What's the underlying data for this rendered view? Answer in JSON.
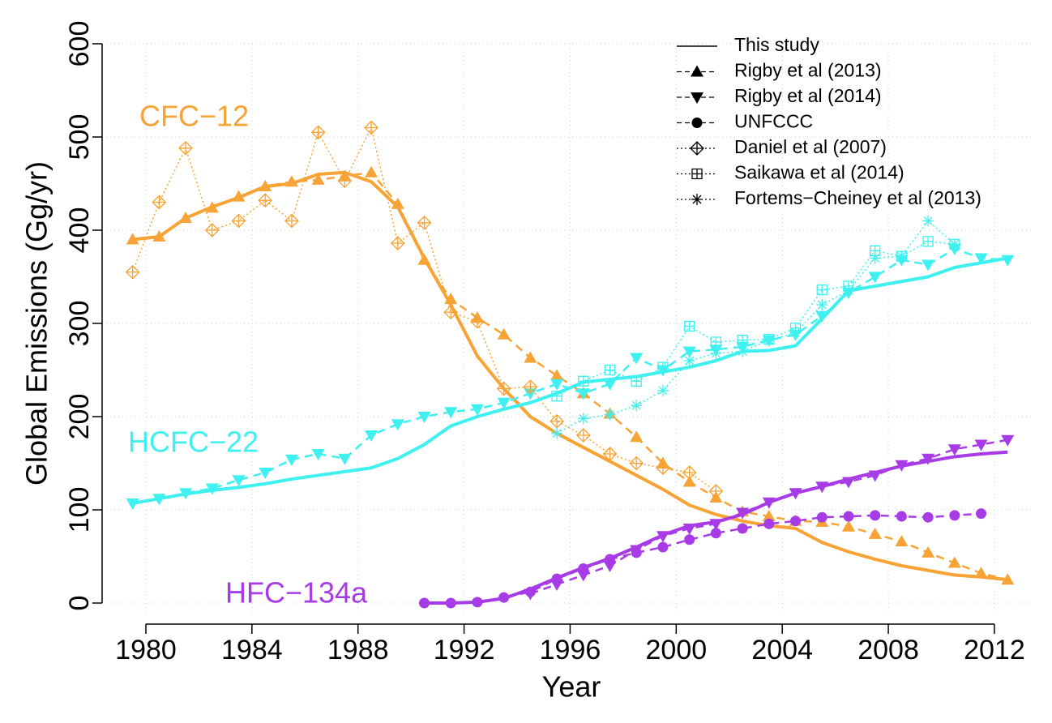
{
  "chart_data": {
    "type": "line",
    "xlabel": "Year",
    "ylabel": "Global Emissions (Gg/yr)",
    "xlim": [
      1978.35,
      2013.5
    ],
    "ylim": [
      0,
      600
    ],
    "xticks": [
      1980,
      1984,
      1988,
      1992,
      1996,
      2000,
      2004,
      2008,
      2012
    ],
    "yticks": [
      0,
      100,
      200,
      300,
      400,
      500,
      600
    ],
    "grid": true,
    "legend": "top-right",
    "series": [
      {
        "name": "This study",
        "label": "CFC−12",
        "color": "#f7a335",
        "line": "solid",
        "marker": "none",
        "x": [
          1979.5,
          1980.5,
          1981.5,
          1982.5,
          1983.5,
          1984.5,
          1985.5,
          1986.5,
          1987.5,
          1988.5,
          1989.5,
          1990.5,
          1991.5,
          1992.5,
          1993.5,
          1994.5,
          1995.5,
          1996.5,
          1997.5,
          1998.5,
          1999.5,
          2000.5,
          2001.5,
          2002.5,
          2003.5,
          2004.5,
          2005.5,
          2006.5,
          2007.5,
          2008.5,
          2009.5,
          2010.5,
          2011.5,
          2012.5
        ],
        "values": [
          390,
          393,
          413,
          425,
          435,
          447,
          450,
          460,
          462,
          452,
          425,
          370,
          320,
          265,
          230,
          200,
          182,
          167,
          152,
          137,
          122,
          105,
          95,
          88,
          83,
          80,
          65,
          55,
          47,
          40,
          35,
          30,
          28,
          25
        ]
      },
      {
        "name": "Rigby et al (2013)",
        "color": "#f7a335",
        "line": "dashed",
        "marker": "triangle-up",
        "x": [
          1979.5,
          1980.5,
          1981.5,
          1982.5,
          1983.5,
          1984.5,
          1985.5,
          1986.5,
          1987.5,
          1988.5,
          1989.5,
          1990.5,
          1991.5,
          1992.5,
          1993.5,
          1994.5,
          1995.5,
          1996.5,
          1997.5,
          1998.5,
          1999.5,
          2000.5,
          2001.5,
          2002.5,
          2003.5,
          2004.5,
          2005.5,
          2006.5,
          2007.5,
          2008.5,
          2009.5,
          2010.5,
          2011.5,
          2012.5
        ],
        "values": [
          390,
          393,
          413,
          424,
          436,
          447,
          452,
          454,
          458,
          462,
          428,
          368,
          326,
          306,
          288,
          263,
          244,
          225,
          203,
          178,
          150,
          130,
          113,
          98,
          93,
          88,
          87,
          82,
          74,
          66,
          54,
          43,
          32,
          25
        ]
      },
      {
        "name": "Rigby et al (2014)",
        "color": "#3ff0f0",
        "line": "dashed",
        "marker": "triangle-down",
        "x": [
          1979.5,
          1980.5,
          1981.5,
          1982.5,
          1983.5,
          1984.5,
          1985.5,
          1986.5,
          1987.5,
          1988.5,
          1989.5,
          1990.5,
          1991.5,
          1992.5,
          1993.5,
          1994.5,
          1995.5,
          1996.5,
          1997.5,
          1998.5,
          1999.5,
          2000.5,
          2001.5,
          2002.5,
          2003.5,
          2004.5,
          2005.5,
          2006.5,
          2007.5,
          2008.5,
          2009.5,
          2010.5,
          2011.5,
          2012.5
        ],
        "values": [
          107,
          112,
          118,
          123,
          132,
          140,
          154,
          160,
          155,
          180,
          192,
          200,
          205,
          208,
          215,
          225,
          235,
          225,
          235,
          263,
          250,
          270,
          272,
          275,
          282,
          288,
          308,
          333,
          350,
          368,
          363,
          380,
          370,
          368
        ]
      },
      {
        "name": "UNFCCC",
        "color": "#a73ce6",
        "line": "dashed",
        "marker": "circle",
        "x": [
          1990.5,
          1991.5,
          1992.5,
          1993.5,
          1994.5,
          1995.5,
          1996.5,
          1997.5,
          1998.5,
          1999.5,
          2000.5,
          2001.5,
          2002.5,
          2003.5,
          2004.5,
          2005.5,
          2006.5,
          2007.5,
          2008.5,
          2009.5,
          2010.5,
          2011.5
        ],
        "values": [
          0,
          0,
          1,
          6,
          12,
          26,
          37,
          47,
          54,
          60,
          68,
          75,
          80,
          85,
          88,
          92,
          93,
          94,
          93,
          92,
          94,
          96
        ]
      },
      {
        "name": "Daniel et al (2007)",
        "color": "#f7a335",
        "line": "dotted",
        "marker": "diamond-plus",
        "x": [
          1979.5,
          1980.5,
          1981.5,
          1982.5,
          1983.5,
          1984.5,
          1985.5,
          1986.5,
          1987.5,
          1988.5,
          1989.5,
          1990.5,
          1991.5,
          1992.5,
          1993.5,
          1994.5,
          1995.5,
          1996.5,
          1997.5,
          1998.5,
          1999.5,
          2000.5,
          2001.5
        ],
        "values": [
          355,
          430,
          488,
          400,
          410,
          432,
          410,
          505,
          453,
          510,
          386,
          408,
          312,
          302,
          230,
          232,
          195,
          180,
          160,
          150,
          145,
          140,
          120
        ]
      },
      {
        "name": "Saikawa et al (2014)",
        "color": "#3ff0f0",
        "line": "dotted",
        "marker": "square-plus",
        "x": [
          1995.5,
          1996.5,
          1997.5,
          1998.5,
          1999.5,
          2000.5,
          2001.5,
          2002.5,
          2003.5,
          2004.5,
          2005.5,
          2006.5,
          2007.5,
          2008.5,
          2009.5,
          2010.5
        ],
        "values": [
          222,
          238,
          250,
          238,
          253,
          297,
          280,
          282,
          283,
          295,
          336,
          340,
          378,
          372,
          388,
          385
        ]
      },
      {
        "name": "Fortems−Cheiney et al (2013)",
        "color": "#3ff0f0",
        "line": "dotted",
        "marker": "asterisk",
        "x": [
          1995.5,
          1996.5,
          1997.5,
          1998.5,
          1999.5,
          2000.5,
          2001.5,
          2002.5,
          2003.5,
          2004.5,
          2005.5,
          2006.5,
          2007.5,
          2008.5,
          2009.5,
          2010.5
        ],
        "values": [
          182,
          198,
          202,
          212,
          228,
          260,
          268,
          270,
          282,
          290,
          320,
          335,
          370,
          372,
          410,
          385
        ]
      },
      {
        "name": "This study",
        "label": "HCFC−22",
        "color": "#3ff0f0",
        "line": "solid",
        "marker": "none",
        "x": [
          1979.5,
          1980.5,
          1981.5,
          1982.5,
          1983.5,
          1984.5,
          1985.5,
          1986.5,
          1987.5,
          1988.5,
          1989.5,
          1990.5,
          1991.5,
          1992.5,
          1993.5,
          1994.5,
          1995.5,
          1996.5,
          1997.5,
          1998.5,
          1999.5,
          2000.5,
          2001.5,
          2002.5,
          2003.5,
          2004.5,
          2005.5,
          2006.5,
          2007.5,
          2008.5,
          2009.5,
          2010.5,
          2011.5,
          2012.5
        ],
        "values": [
          107,
          112,
          117,
          121,
          124,
          128,
          133,
          137,
          141,
          145,
          155,
          170,
          190,
          200,
          208,
          215,
          225,
          237,
          240,
          243,
          248,
          253,
          260,
          270,
          271,
          276,
          305,
          335,
          340,
          345,
          350,
          360,
          365,
          370
        ]
      },
      {
        "name": "This study",
        "label": "HFC−134a",
        "color": "#a73ce6",
        "line": "solid",
        "marker": "none",
        "x": [
          1990.5,
          1991.5,
          1992.5,
          1993.5,
          1994.5,
          1995.5,
          1996.5,
          1997.5,
          1998.5,
          1999.5,
          2000.5,
          2001.5,
          2002.5,
          2003.5,
          2004.5,
          2005.5,
          2006.5,
          2007.5,
          2008.5,
          2009.5,
          2010.5,
          2011.5,
          2012.5
        ],
        "values": [
          0,
          0,
          1,
          5,
          15,
          27,
          38,
          48,
          60,
          73,
          83,
          87,
          95,
          108,
          118,
          125,
          133,
          140,
          147,
          152,
          157,
          160,
          162
        ]
      },
      {
        "name": "Rigby et al (2014)",
        "color": "#a73ce6",
        "line": "dashed",
        "marker": "triangle-down",
        "x": [
          1994.5,
          1995.5,
          1996.5,
          1997.5,
          1998.5,
          1999.5,
          2000.5,
          2001.5,
          2002.5,
          2003.5,
          2004.5,
          2005.5,
          2006.5,
          2007.5,
          2008.5,
          2009.5,
          2010.5,
          2011.5,
          2012.5
        ],
        "values": [
          10,
          20,
          30,
          40,
          57,
          72,
          80,
          85,
          97,
          108,
          118,
          125,
          130,
          137,
          148,
          155,
          165,
          170,
          175
        ]
      }
    ]
  }
}
